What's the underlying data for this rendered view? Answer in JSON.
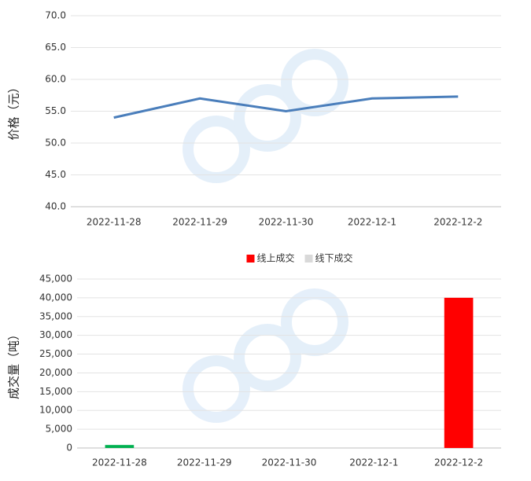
{
  "chart_data": [
    {
      "type": "line",
      "y_label": "价格（元）",
      "categories": [
        "2022-11-28",
        "2022-11-29",
        "2022-11-30",
        "2022-12-1",
        "2022-12-2"
      ],
      "series": [
        {
          "name": "价格",
          "color": "#4a7ebb",
          "values": [
            54.0,
            57.0,
            55.0,
            57.0,
            57.3
          ]
        }
      ],
      "ylim": [
        40,
        70
      ],
      "yticks": [
        {
          "value": 40,
          "label": "40.0"
        },
        {
          "value": 45,
          "label": "45.0"
        },
        {
          "value": 50,
          "label": "50.0"
        },
        {
          "value": 55,
          "label": "55.0"
        },
        {
          "value": 60,
          "label": "60.0"
        },
        {
          "value": 65,
          "label": "65.0"
        },
        {
          "value": 70,
          "label": "70.0"
        }
      ],
      "grid": true
    },
    {
      "type": "stacked_bar",
      "y_label": "成交量（吨）",
      "categories": [
        "2022-11-28",
        "2022-11-29",
        "2022-11-30",
        "2022-12-1",
        "2022-12-2"
      ],
      "series": [
        {
          "name": "线上成交",
          "color": "#ff0000",
          "values": [
            null,
            null,
            null,
            null,
            40000
          ]
        },
        {
          "name": "线下成交",
          "color": "#d9d9d9",
          "point_colors": [
            "#00b050",
            null,
            null,
            null,
            null
          ],
          "values": [
            800,
            null,
            null,
            null,
            null
          ]
        }
      ],
      "ylim": [
        0,
        45000
      ],
      "yticks": [
        0,
        {
          "value": 5000,
          "label": "5,000"
        },
        {
          "value": 10000,
          "label": "10,000"
        },
        {
          "value": 15000,
          "label": "15,000"
        },
        {
          "value": 20000,
          "label": "20,000"
        },
        {
          "value": 25000,
          "label": "25,000"
        },
        {
          "value": 30000,
          "label": "30,000"
        },
        {
          "value": 35000,
          "label": "35,000"
        },
        {
          "value": 40000,
          "label": "40,000"
        },
        {
          "value": 45000,
          "label": "45,000"
        }
      ],
      "grid": true,
      "legend": "top"
    }
  ]
}
